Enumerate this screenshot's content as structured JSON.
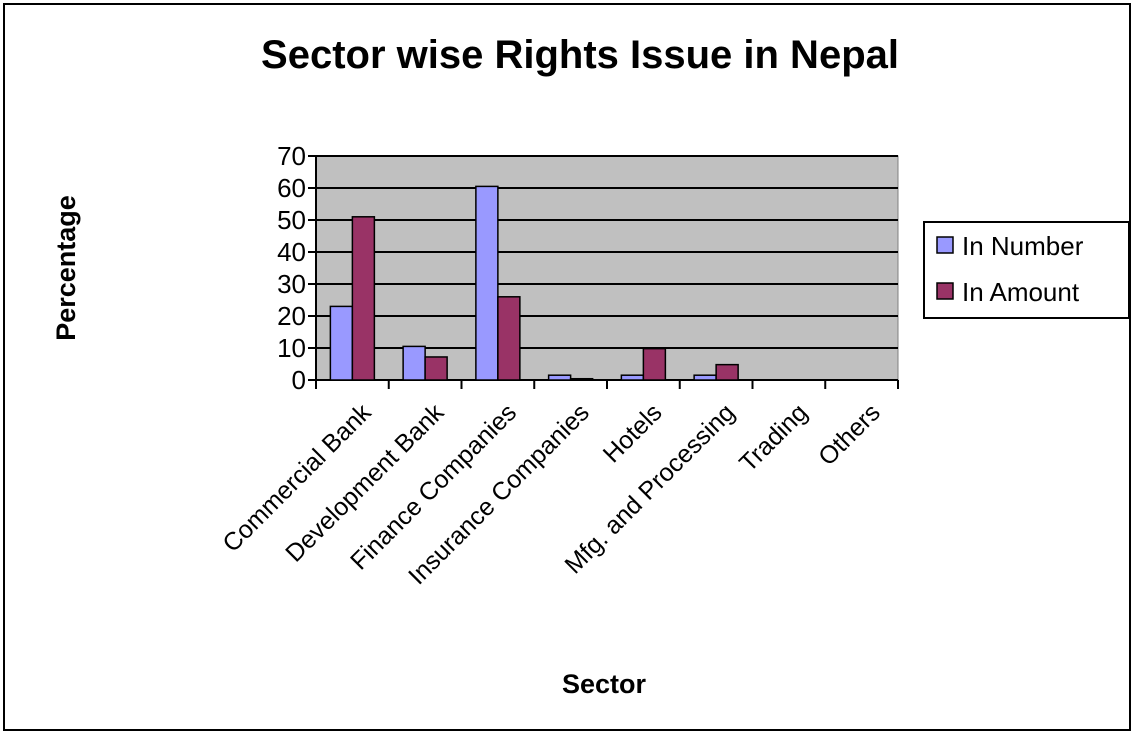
{
  "chart_data": {
    "type": "bar",
    "title": "Sector wise Rights Issue in Nepal",
    "xlabel": "Sector",
    "ylabel": "Percentage",
    "ylim": [
      0,
      70
    ],
    "yticks": [
      0,
      10,
      20,
      30,
      40,
      50,
      60,
      70
    ],
    "grid": true,
    "legend_position": "right",
    "categories": [
      "Commercial Bank",
      "Development Bank",
      "Finance Companies",
      "Insurance Companies",
      "Hotels",
      "Mfg. and Processing",
      "Trading",
      "Others"
    ],
    "series": [
      {
        "name": "In Number",
        "color": "#9999ff",
        "values": [
          23,
          10.5,
          60.5,
          1.5,
          1.5,
          1.5,
          0,
          0
        ]
      },
      {
        "name": "In Amount",
        "color": "#993366",
        "values": [
          51,
          7.2,
          26,
          0.4,
          9.8,
          4.8,
          0,
          0
        ]
      }
    ],
    "plot_background": "#c0c0c0"
  }
}
